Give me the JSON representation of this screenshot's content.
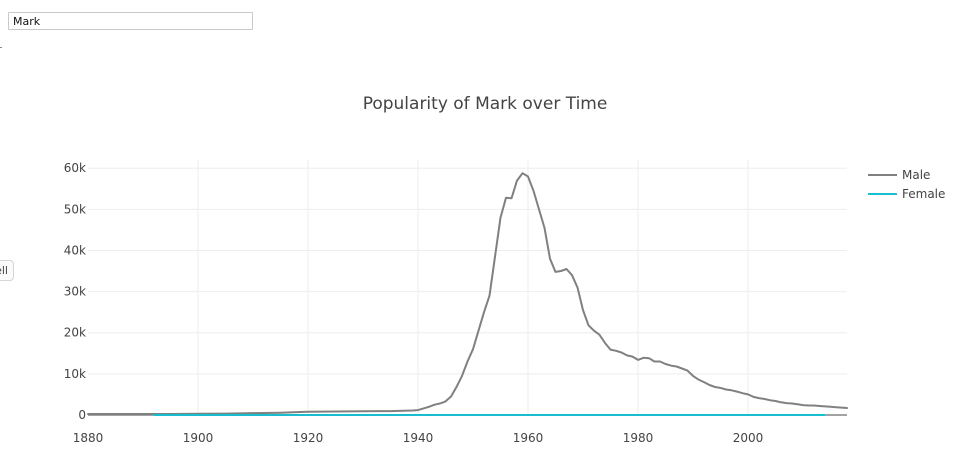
{
  "search": {
    "value": "Mark",
    "placeholder": ""
  },
  "side_button": {
    "label": "ell"
  },
  "chart_data": {
    "type": "line",
    "title": "Popularity of Mark over Time",
    "xlabel": "",
    "ylabel": "",
    "xlim": [
      1880,
      2018
    ],
    "ylim": [
      0,
      62000
    ],
    "xticks": [
      1880,
      1900,
      1920,
      1940,
      1960,
      1980,
      2000
    ],
    "xtick_labels": [
      "1880",
      "1900",
      "1920",
      "1940",
      "1960",
      "1980",
      "2000"
    ],
    "yticks": [
      0,
      10000,
      20000,
      30000,
      40000,
      50000,
      60000
    ],
    "ytick_labels": [
      "0",
      "10k",
      "20k",
      "30k",
      "40k",
      "50k",
      "60k"
    ],
    "grid": true,
    "legend": "top-right",
    "series": [
      {
        "name": "Male",
        "color": "#808080",
        "x": [
          1880,
          1885,
          1890,
          1895,
          1900,
          1905,
          1910,
          1915,
          1918,
          1920,
          1925,
          1930,
          1935,
          1939,
          1940,
          1941,
          1942,
          1943,
          1944,
          1945,
          1946,
          1947,
          1948,
          1949,
          1950,
          1951,
          1952,
          1953,
          1954,
          1955,
          1956,
          1957,
          1958,
          1959,
          1960,
          1961,
          1962,
          1963,
          1964,
          1965,
          1966,
          1967,
          1968,
          1969,
          1970,
          1971,
          1972,
          1973,
          1974,
          1975,
          1976,
          1977,
          1978,
          1979,
          1980,
          1981,
          1982,
          1983,
          1984,
          1985,
          1986,
          1987,
          1988,
          1989,
          1990,
          1991,
          1992,
          1993,
          1994,
          1995,
          1996,
          1997,
          1998,
          1999,
          2000,
          2001,
          2002,
          2003,
          2004,
          2005,
          2006,
          2007,
          2008,
          2009,
          2010,
          2011,
          2012,
          2013,
          2014,
          2015,
          2016,
          2017,
          2018
        ],
        "values": [
          250,
          250,
          250,
          250,
          300,
          350,
          450,
          550,
          700,
          800,
          850,
          900,
          950,
          1100,
          1200,
          1600,
          2000,
          2500,
          2800,
          3300,
          4500,
          6800,
          9500,
          13000,
          16000,
          20500,
          25000,
          29000,
          38500,
          48000,
          52800,
          52700,
          57000,
          58800,
          58000,
          54500,
          50000,
          45500,
          38000,
          34800,
          35000,
          35500,
          34000,
          31000,
          25500,
          21800,
          20500,
          19500,
          17500,
          15900,
          15600,
          15200,
          14500,
          14200,
          13400,
          13900,
          13800,
          13000,
          13000,
          12400,
          12000,
          11800,
          11300,
          10800,
          9500,
          8600,
          8000,
          7300,
          6800,
          6600,
          6200,
          6000,
          5700,
          5300,
          5000,
          4400,
          4100,
          3900,
          3600,
          3400,
          3100,
          2900,
          2800,
          2600,
          2400,
          2300,
          2300,
          2200,
          2100,
          2000,
          1900,
          1800,
          1700
        ]
      },
      {
        "name": "Female",
        "color": "#17becf",
        "x": [
          1892,
          1900,
          1920,
          1940,
          1960,
          1980,
          2000,
          2014
        ],
        "values": [
          0,
          0,
          0,
          0,
          0,
          0,
          0,
          0
        ]
      }
    ]
  }
}
